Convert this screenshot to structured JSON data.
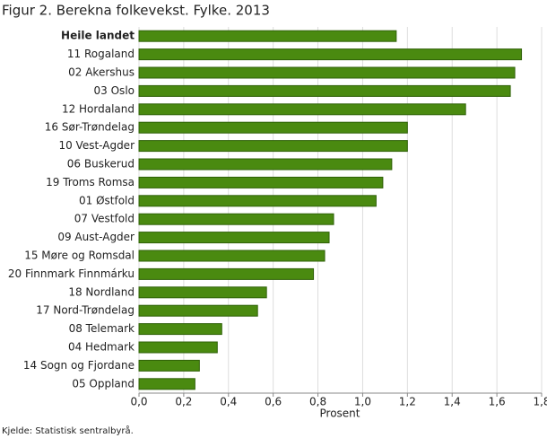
{
  "chart_data": {
    "type": "barh",
    "title": "Figur 2.  Berekna folkevekst.  Fylke. 2013",
    "categories": [
      "Heile landet",
      "11 Rogaland",
      "02 Akershus",
      "03 Oslo",
      "12 Hordaland",
      "16 Sør-Trøndelag",
      "10 Vest-Agder",
      "06 Buskerud",
      "19 Troms Romsa",
      "01 Østfold",
      "07 Vestfold",
      "09 Aust-Agder",
      "15 Møre og Romsdal",
      "20 Finnmark Finnmárku",
      "18 Nordland",
      "17 Nord-Trøndelag",
      "08 Telemark",
      "04 Hedmark",
      "14 Sogn og Fjordane",
      "05 Oppland"
    ],
    "values": [
      1.15,
      1.71,
      1.68,
      1.66,
      1.46,
      1.2,
      1.2,
      1.13,
      1.09,
      1.06,
      0.87,
      0.85,
      0.83,
      0.78,
      0.57,
      0.53,
      0.37,
      0.35,
      0.27,
      0.25
    ],
    "color": "#4a8a10",
    "xlim": [
      0,
      1.8
    ],
    "xticks": [
      {
        "value": 0,
        "label": "0,0"
      },
      {
        "value": 0.2,
        "label": "0,2"
      },
      {
        "value": 0.4,
        "label": "0,4"
      },
      {
        "value": 0.6,
        "label": "0,6"
      },
      {
        "value": 0.8,
        "label": "0,8"
      },
      {
        "value": 1,
        "label": "1,0"
      },
      {
        "value": 1.2,
        "label": "1,2"
      },
      {
        "value": 1.4,
        "label": "1,4"
      },
      {
        "value": 1.6,
        "label": "1,6"
      },
      {
        "value": 1.8,
        "label": "1,8"
      }
    ],
    "xlabel": "Prosent",
    "grid": true,
    "source": "Kjelde: Statistisk sentralbyrå."
  }
}
